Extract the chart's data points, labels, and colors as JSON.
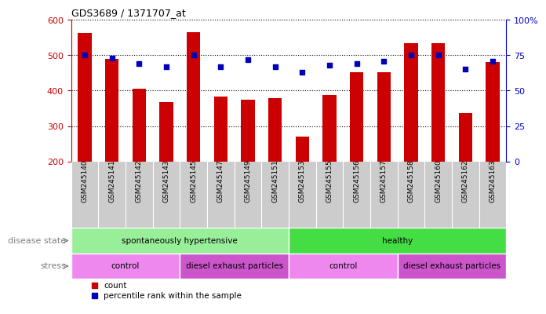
{
  "title": "GDS3689 / 1371707_at",
  "samples": [
    "GSM245140",
    "GSM245141",
    "GSM245142",
    "GSM245143",
    "GSM245145",
    "GSM245147",
    "GSM245149",
    "GSM245151",
    "GSM245153",
    "GSM245155",
    "GSM245156",
    "GSM245157",
    "GSM245158",
    "GSM245160",
    "GSM245162",
    "GSM245163"
  ],
  "counts": [
    562,
    490,
    405,
    367,
    565,
    383,
    374,
    378,
    270,
    388,
    452,
    452,
    533,
    533,
    337,
    480
  ],
  "percentiles": [
    75,
    73,
    69,
    67,
    75,
    67,
    72,
    67,
    63,
    68,
    69,
    71,
    75,
    75,
    65,
    71
  ],
  "bar_color": "#cc0000",
  "dot_color": "#0000bb",
  "ylim_left": [
    200,
    600
  ],
  "ylim_right": [
    0,
    100
  ],
  "yticks_left": [
    200,
    300,
    400,
    500,
    600
  ],
  "yticks_right": [
    0,
    25,
    50,
    75,
    100
  ],
  "disease_state_groups": [
    {
      "label": "spontaneously hypertensive",
      "start": 0,
      "end": 8,
      "color": "#99ee99"
    },
    {
      "label": "healthy",
      "start": 8,
      "end": 16,
      "color": "#44dd44"
    }
  ],
  "stress_groups": [
    {
      "label": "control",
      "start": 0,
      "end": 4,
      "color": "#ee88ee"
    },
    {
      "label": "diesel exhaust particles",
      "start": 4,
      "end": 8,
      "color": "#cc55cc"
    },
    {
      "label": "control",
      "start": 8,
      "end": 12,
      "color": "#ee88ee"
    },
    {
      "label": "diesel exhaust particles",
      "start": 12,
      "end": 16,
      "color": "#cc55cc"
    }
  ],
  "disease_state_label": "disease state",
  "stress_label": "stress",
  "legend_count_label": "count",
  "legend_pct_label": "percentile rank within the sample",
  "left_axis_color": "#cc0000",
  "right_axis_color": "#0000cc",
  "grid_color": "#000000",
  "tick_bg_color": "#cccccc",
  "background_color": "#ffffff"
}
